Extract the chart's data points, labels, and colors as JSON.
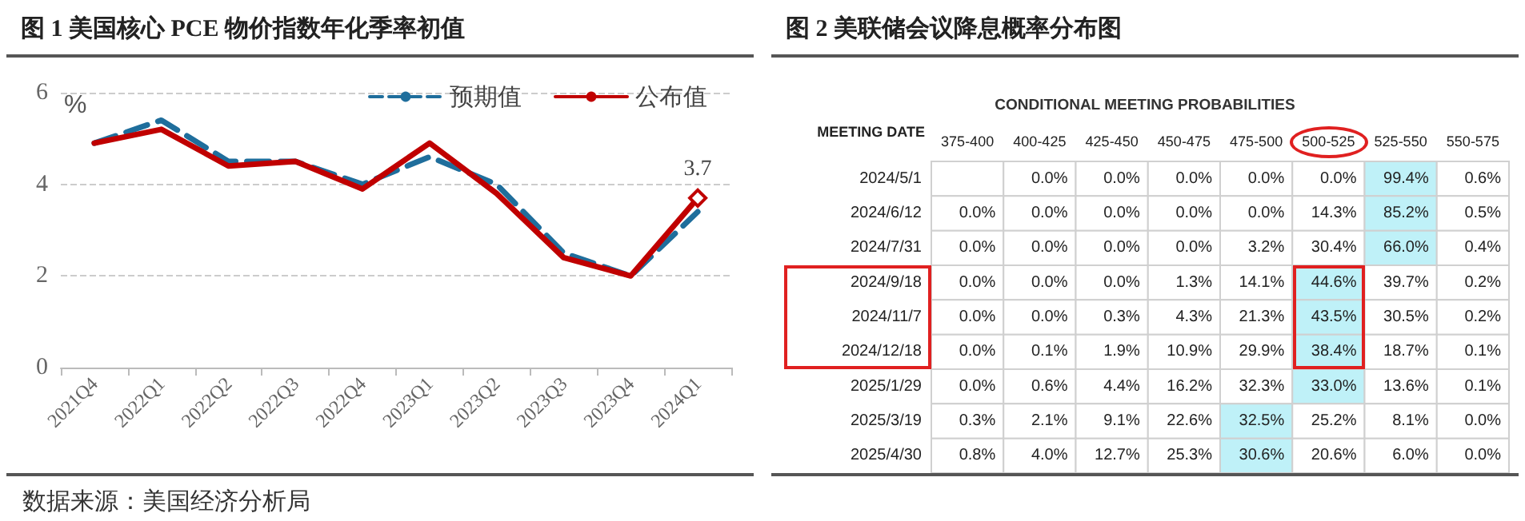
{
  "chart_data": [
    {
      "type": "line",
      "title": "图 1 美国核心 PCE 物价指数年化季率初值",
      "ylabel": "%",
      "categories": [
        "2021Q4",
        "2022Q1",
        "2022Q2",
        "2022Q3",
        "2022Q4",
        "2023Q1",
        "2023Q2",
        "2023Q3",
        "2023Q4",
        "2024Q1"
      ],
      "series": [
        {
          "name": "预期值",
          "color": "#1f6e9c",
          "line_style": "dashed",
          "values": [
            4.9,
            5.4,
            4.5,
            4.5,
            4.0,
            4.6,
            4.0,
            2.5,
            2.0,
            3.4
          ]
        },
        {
          "name": "公布值",
          "color": "#c00000",
          "line_style": "solid",
          "values": [
            4.9,
            5.2,
            4.4,
            4.5,
            3.9,
            4.9,
            3.8,
            2.4,
            2.0,
            3.7
          ],
          "value_labels": [
            null,
            null,
            null,
            null,
            null,
            null,
            null,
            null,
            null,
            "3.7"
          ]
        }
      ],
      "ylim": [
        0,
        6
      ],
      "yticks": [
        0,
        2,
        4,
        6
      ],
      "grid": "y",
      "legend": "top right",
      "annotations": [
        "数据来源：美国经济分析局"
      ]
    },
    {
      "type": "heatmap",
      "title": "图 2 美联储会议降息概率分布图",
      "subtitle": "CONDITIONAL MEETING PROBABILITIES",
      "ylabel": "MEETING DATE",
      "categories": [
        "375-400",
        "400-425",
        "425-450",
        "450-475",
        "475-500",
        "500-525",
        "525-550",
        "550-575"
      ],
      "y_categories": [
        "2024/5/1",
        "2024/6/12",
        "2024/7/31",
        "2024/9/18",
        "2024/11/7",
        "2024/12/18",
        "2025/1/29",
        "2025/3/19",
        "2025/4/30"
      ],
      "cells": [
        [
          null,
          0.0,
          0.0,
          0.0,
          0.0,
          0.0,
          99.4,
          0.6
        ],
        [
          0.0,
          0.0,
          0.0,
          0.0,
          0.0,
          14.3,
          85.2,
          0.5
        ],
        [
          0.0,
          0.0,
          0.0,
          0.0,
          3.2,
          30.4,
          66.0,
          0.4
        ],
        [
          0.0,
          0.0,
          0.0,
          1.3,
          14.1,
          44.6,
          39.7,
          0.2
        ],
        [
          0.0,
          0.0,
          0.3,
          4.3,
          21.3,
          43.5,
          30.5,
          0.2
        ],
        [
          0.0,
          0.1,
          1.9,
          10.9,
          29.9,
          38.4,
          18.7,
          0.1
        ],
        [
          0.0,
          0.6,
          4.4,
          16.2,
          32.3,
          33.0,
          13.6,
          0.1
        ],
        [
          0.3,
          2.1,
          9.1,
          22.6,
          32.5,
          25.2,
          8.1,
          0.0
        ],
        [
          0.8,
          4.0,
          12.7,
          25.3,
          30.6,
          20.6,
          6.0,
          0.0
        ]
      ],
      "cell_labels": [
        [
          null,
          "0.0%",
          "0.0%",
          "0.0%",
          "0.0%",
          "0.0%",
          "99.4%",
          "0.6%"
        ],
        [
          "0.0%",
          "0.0%",
          "0.0%",
          "0.0%",
          "0.0%",
          "14.3%",
          "85.2%",
          "0.5%"
        ],
        [
          "0.0%",
          "0.0%",
          "0.0%",
          "0.0%",
          "3.2%",
          "30.4%",
          "66.0%",
          "0.4%"
        ],
        [
          "0.0%",
          "0.0%",
          "0.0%",
          "1.3%",
          "14.1%",
          "44.6%",
          "39.7%",
          "0.2%"
        ],
        [
          "0.0%",
          "0.0%",
          "0.3%",
          "4.3%",
          "21.3%",
          "43.5%",
          "30.5%",
          "0.2%"
        ],
        [
          "0.0%",
          "0.1%",
          "1.9%",
          "10.9%",
          "29.9%",
          "38.4%",
          "18.7%",
          "0.1%"
        ],
        [
          "0.0%",
          "0.6%",
          "4.4%",
          "16.2%",
          "32.3%",
          "33.0%",
          "13.6%",
          "0.1%"
        ],
        [
          "0.3%",
          "2.1%",
          "9.1%",
          "22.6%",
          "32.5%",
          "25.2%",
          "8.1%",
          "0.0%"
        ],
        [
          "0.8%",
          "4.0%",
          "12.7%",
          "25.3%",
          "30.6%",
          "20.6%",
          "6.0%",
          "0.0%"
        ]
      ]
    }
  ]
}
